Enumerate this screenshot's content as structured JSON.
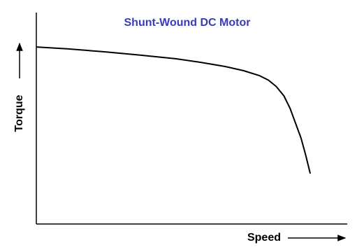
{
  "chart_data": {
    "type": "line",
    "title": "Shunt-Wound DC Motor",
    "x_label": "Speed",
    "y_label": "Torque",
    "x": [
      0,
      10,
      22,
      33,
      45,
      53,
      61,
      67,
      72,
      75,
      77.5,
      80,
      82,
      84,
      85.5,
      87,
      88,
      88.5
    ],
    "series": [
      {
        "name": "Torque",
        "color": "#000000",
        "values": [
          84.3,
          83.4,
          82,
          80.5,
          78.7,
          77,
          75,
          73,
          70.7,
          68.5,
          65.5,
          61,
          55,
          47,
          41,
          33,
          27,
          24
        ]
      }
    ],
    "xlim": [
      0,
      100
    ],
    "ylim": [
      0,
      100
    ],
    "title_color": "#3a3ac0"
  }
}
